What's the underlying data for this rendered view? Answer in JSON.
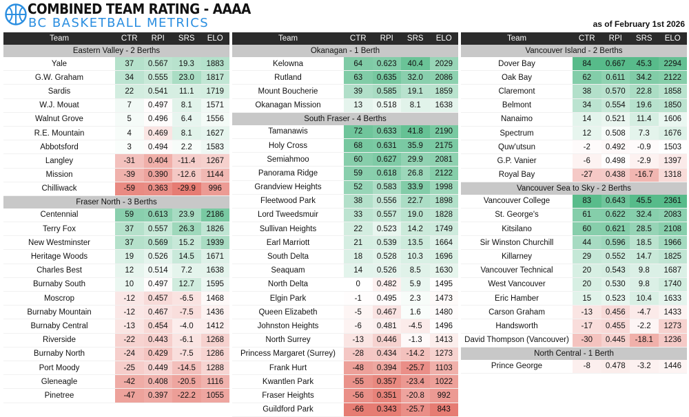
{
  "header": {
    "title": "COMBINED TEAM RATING - AAAA",
    "subtitle": "BC BASKETBALL METRICS",
    "as_of": "as of February 1st 2026",
    "logo_icon": "basketball-icon"
  },
  "columns": [
    "Team",
    "CTR",
    "RPI",
    "SRS",
    "ELO"
  ],
  "colors": {
    "positive": "#57bb8a",
    "negative": "#e67c73",
    "neutral": "#ffffff",
    "header_bg": "#2b2b2b",
    "group_bg": "#c8c8c8"
  },
  "ranges": {
    "CTR": [
      -66,
      84
    ],
    "RPI": [
      0.343,
      0.667
    ],
    "SRS": [
      -29.9,
      45.5
    ],
    "ELO": [
      843,
      2361
    ]
  },
  "panels": [
    {
      "groups": [
        {
          "name": "Eastern Valley - 2 Berths",
          "teams": [
            {
              "team": "Yale",
              "ctr": "37",
              "rpi": "0.567",
              "srs": "19.3",
              "elo": "1883"
            },
            {
              "team": "G.W. Graham",
              "ctr": "34",
              "rpi": "0.555",
              "srs": "23.0",
              "elo": "1817"
            },
            {
              "team": "Sardis",
              "ctr": "22",
              "rpi": "0.541",
              "srs": "11.1",
              "elo": "1719"
            },
            {
              "team": "W.J. Mouat",
              "ctr": "7",
              "rpi": "0.497",
              "srs": "8.1",
              "elo": "1571"
            },
            {
              "team": "Walnut Grove",
              "ctr": "5",
              "rpi": "0.496",
              "srs": "6.4",
              "elo": "1556"
            },
            {
              "team": "R.E. Mountain",
              "ctr": "4",
              "rpi": "0.469",
              "srs": "8.1",
              "elo": "1627"
            },
            {
              "team": "Abbotsford",
              "ctr": "3",
              "rpi": "0.494",
              "srs": "2.2",
              "elo": "1583"
            },
            {
              "team": "Langley",
              "ctr": "-31",
              "rpi": "0.404",
              "srs": "-11.4",
              "elo": "1267"
            },
            {
              "team": "Mission",
              "ctr": "-39",
              "rpi": "0.390",
              "srs": "-12.6",
              "elo": "1144"
            },
            {
              "team": "Chilliwack",
              "ctr": "-59",
              "rpi": "0.363",
              "srs": "-29.9",
              "elo": "996"
            }
          ]
        },
        {
          "name": "Fraser North - 3 Berths",
          "teams": [
            {
              "team": "Centennial",
              "ctr": "59",
              "rpi": "0.613",
              "srs": "23.9",
              "elo": "2186"
            },
            {
              "team": "Terry Fox",
              "ctr": "37",
              "rpi": "0.557",
              "srs": "26.3",
              "elo": "1826"
            },
            {
              "team": "New Westminster",
              "ctr": "37",
              "rpi": "0.569",
              "srs": "15.2",
              "elo": "1939"
            },
            {
              "team": "Heritage Woods",
              "ctr": "19",
              "rpi": "0.526",
              "srs": "14.5",
              "elo": "1671"
            },
            {
              "team": "Charles Best",
              "ctr": "12",
              "rpi": "0.514",
              "srs": "7.2",
              "elo": "1638"
            },
            {
              "team": "Burnaby South",
              "ctr": "10",
              "rpi": "0.497",
              "srs": "12.7",
              "elo": "1595"
            },
            {
              "team": "Moscrop",
              "ctr": "-12",
              "rpi": "0.457",
              "srs": "-6.5",
              "elo": "1468"
            },
            {
              "team": "Burnaby Mountain",
              "ctr": "-12",
              "rpi": "0.467",
              "srs": "-7.5",
              "elo": "1436"
            },
            {
              "team": "Burnaby Central",
              "ctr": "-13",
              "rpi": "0.454",
              "srs": "-4.0",
              "elo": "1412"
            },
            {
              "team": "Riverside",
              "ctr": "-22",
              "rpi": "0.443",
              "srs": "-6.1",
              "elo": "1268"
            },
            {
              "team": "Burnaby North",
              "ctr": "-24",
              "rpi": "0.429",
              "srs": "-7.5",
              "elo": "1286"
            },
            {
              "team": "Port Moody",
              "ctr": "-25",
              "rpi": "0.449",
              "srs": "-14.5",
              "elo": "1288"
            },
            {
              "team": "Gleneagle",
              "ctr": "-42",
              "rpi": "0.408",
              "srs": "-20.5",
              "elo": "1116"
            },
            {
              "team": "Pinetree",
              "ctr": "-47",
              "rpi": "0.397",
              "srs": "-22.2",
              "elo": "1055"
            }
          ]
        }
      ]
    },
    {
      "groups": [
        {
          "name": "Okanagan - 1 Berth",
          "teams": [
            {
              "team": "Kelowna",
              "ctr": "64",
              "rpi": "0.623",
              "srs": "40.4",
              "elo": "2029"
            },
            {
              "team": "Rutland",
              "ctr": "63",
              "rpi": "0.635",
              "srs": "32.0",
              "elo": "2086"
            },
            {
              "team": "Mount Boucherie",
              "ctr": "39",
              "rpi": "0.585",
              "srs": "19.1",
              "elo": "1859"
            },
            {
              "team": "Okanagan Mission",
              "ctr": "13",
              "rpi": "0.518",
              "srs": "8.1",
              "elo": "1638"
            }
          ]
        },
        {
          "name": "South Fraser - 4 Berths",
          "teams": [
            {
              "team": "Tamanawis",
              "ctr": "72",
              "rpi": "0.633",
              "srs": "41.8",
              "elo": "2190"
            },
            {
              "team": "Holy Cross",
              "ctr": "68",
              "rpi": "0.631",
              "srs": "35.9",
              "elo": "2175"
            },
            {
              "team": "Semiahmoo",
              "ctr": "60",
              "rpi": "0.627",
              "srs": "29.9",
              "elo": "2081"
            },
            {
              "team": "Panorama Ridge",
              "ctr": "59",
              "rpi": "0.618",
              "srs": "26.8",
              "elo": "2122"
            },
            {
              "team": "Grandview Heights",
              "ctr": "52",
              "rpi": "0.583",
              "srs": "33.9",
              "elo": "1998"
            },
            {
              "team": "Fleetwood Park",
              "ctr": "38",
              "rpi": "0.556",
              "srs": "22.7",
              "elo": "1898"
            },
            {
              "team": "Lord Tweedsmuir",
              "ctr": "33",
              "rpi": "0.557",
              "srs": "19.0",
              "elo": "1828"
            },
            {
              "team": "Sullivan Heights",
              "ctr": "22",
              "rpi": "0.523",
              "srs": "14.2",
              "elo": "1749"
            },
            {
              "team": "Earl Marriott",
              "ctr": "21",
              "rpi": "0.539",
              "srs": "13.5",
              "elo": "1664"
            },
            {
              "team": "South Delta",
              "ctr": "18",
              "rpi": "0.528",
              "srs": "10.3",
              "elo": "1696"
            },
            {
              "team": "Seaquam",
              "ctr": "14",
              "rpi": "0.526",
              "srs": "8.5",
              "elo": "1630"
            },
            {
              "team": "North Delta",
              "ctr": "0",
              "rpi": "0.482",
              "srs": "5.9",
              "elo": "1495"
            },
            {
              "team": "Elgin Park",
              "ctr": "-1",
              "rpi": "0.495",
              "srs": "2.3",
              "elo": "1473"
            },
            {
              "team": "Queen Elizabeth",
              "ctr": "-5",
              "rpi": "0.467",
              "srs": "1.6",
              "elo": "1480"
            },
            {
              "team": "Johnston Heights",
              "ctr": "-6",
              "rpi": "0.481",
              "srs": "-4.5",
              "elo": "1496"
            },
            {
              "team": "North Surrey",
              "ctr": "-13",
              "rpi": "0.446",
              "srs": "-1.3",
              "elo": "1413"
            },
            {
              "team": "Princess Margaret (Surrey)",
              "ctr": "-28",
              "rpi": "0.434",
              "srs": "-14.2",
              "elo": "1273"
            },
            {
              "team": "Frank Hurt",
              "ctr": "-48",
              "rpi": "0.394",
              "srs": "-25.7",
              "elo": "1103"
            },
            {
              "team": "Kwantlen Park",
              "ctr": "-55",
              "rpi": "0.357",
              "srs": "-23.4",
              "elo": "1022"
            },
            {
              "team": "Fraser Heights",
              "ctr": "-56",
              "rpi": "0.351",
              "srs": "-20.8",
              "elo": "992"
            },
            {
              "team": "Guildford Park",
              "ctr": "-66",
              "rpi": "0.343",
              "srs": "-25.7",
              "elo": "843"
            }
          ]
        }
      ]
    },
    {
      "groups": [
        {
          "name": "Vancouver Island - 2 Berths",
          "teams": [
            {
              "team": "Dover Bay",
              "ctr": "84",
              "rpi": "0.667",
              "srs": "45.3",
              "elo": "2294"
            },
            {
              "team": "Oak Bay",
              "ctr": "62",
              "rpi": "0.611",
              "srs": "34.2",
              "elo": "2122"
            },
            {
              "team": "Claremont",
              "ctr": "38",
              "rpi": "0.570",
              "srs": "22.8",
              "elo": "1858"
            },
            {
              "team": "Belmont",
              "ctr": "34",
              "rpi": "0.554",
              "srs": "19.6",
              "elo": "1850"
            },
            {
              "team": "Nanaimo",
              "ctr": "14",
              "rpi": "0.521",
              "srs": "11.4",
              "elo": "1606"
            },
            {
              "team": "Spectrum",
              "ctr": "12",
              "rpi": "0.508",
              "srs": "7.3",
              "elo": "1676"
            },
            {
              "team": "Quw'utsun",
              "ctr": "-2",
              "rpi": "0.492",
              "srs": "-0.9",
              "elo": "1503"
            },
            {
              "team": "G.P. Vanier",
              "ctr": "-6",
              "rpi": "0.498",
              "srs": "-2.9",
              "elo": "1397"
            },
            {
              "team": "Royal Bay",
              "ctr": "-27",
              "rpi": "0.438",
              "srs": "-16.7",
              "elo": "1318"
            }
          ]
        },
        {
          "name": "Vancouver Sea to Sky - 2 Berths",
          "teams": [
            {
              "team": "Vancouver College",
              "ctr": "83",
              "rpi": "0.643",
              "srs": "45.5",
              "elo": "2361"
            },
            {
              "team": "St. George's",
              "ctr": "61",
              "rpi": "0.622",
              "srs": "32.4",
              "elo": "2083"
            },
            {
              "team": "Kitsilano",
              "ctr": "60",
              "rpi": "0.621",
              "srs": "28.5",
              "elo": "2108"
            },
            {
              "team": "Sir Winston Churchill",
              "ctr": "44",
              "rpi": "0.596",
              "srs": "18.5",
              "elo": "1966"
            },
            {
              "team": "Killarney",
              "ctr": "29",
              "rpi": "0.552",
              "srs": "14.7",
              "elo": "1825"
            },
            {
              "team": "Vancouver Technical",
              "ctr": "20",
              "rpi": "0.543",
              "srs": "9.8",
              "elo": "1687"
            },
            {
              "team": "West Vancouver",
              "ctr": "20",
              "rpi": "0.530",
              "srs": "9.8",
              "elo": "1740"
            },
            {
              "team": "Eric Hamber",
              "ctr": "15",
              "rpi": "0.523",
              "srs": "10.4",
              "elo": "1633"
            },
            {
              "team": "Carson Graham",
              "ctr": "-13",
              "rpi": "0.456",
              "srs": "-4.7",
              "elo": "1433"
            },
            {
              "team": "Handsworth",
              "ctr": "-17",
              "rpi": "0.455",
              "srs": "-2.2",
              "elo": "1273"
            },
            {
              "team": "David Thompson (Vancouver)",
              "ctr": "-30",
              "rpi": "0.445",
              "srs": "-18.1",
              "elo": "1236"
            }
          ]
        },
        {
          "name": "North Central - 1 Berth",
          "teams": [
            {
              "team": "Prince George",
              "ctr": "-8",
              "rpi": "0.478",
              "srs": "-3.2",
              "elo": "1446"
            }
          ]
        }
      ]
    }
  ]
}
